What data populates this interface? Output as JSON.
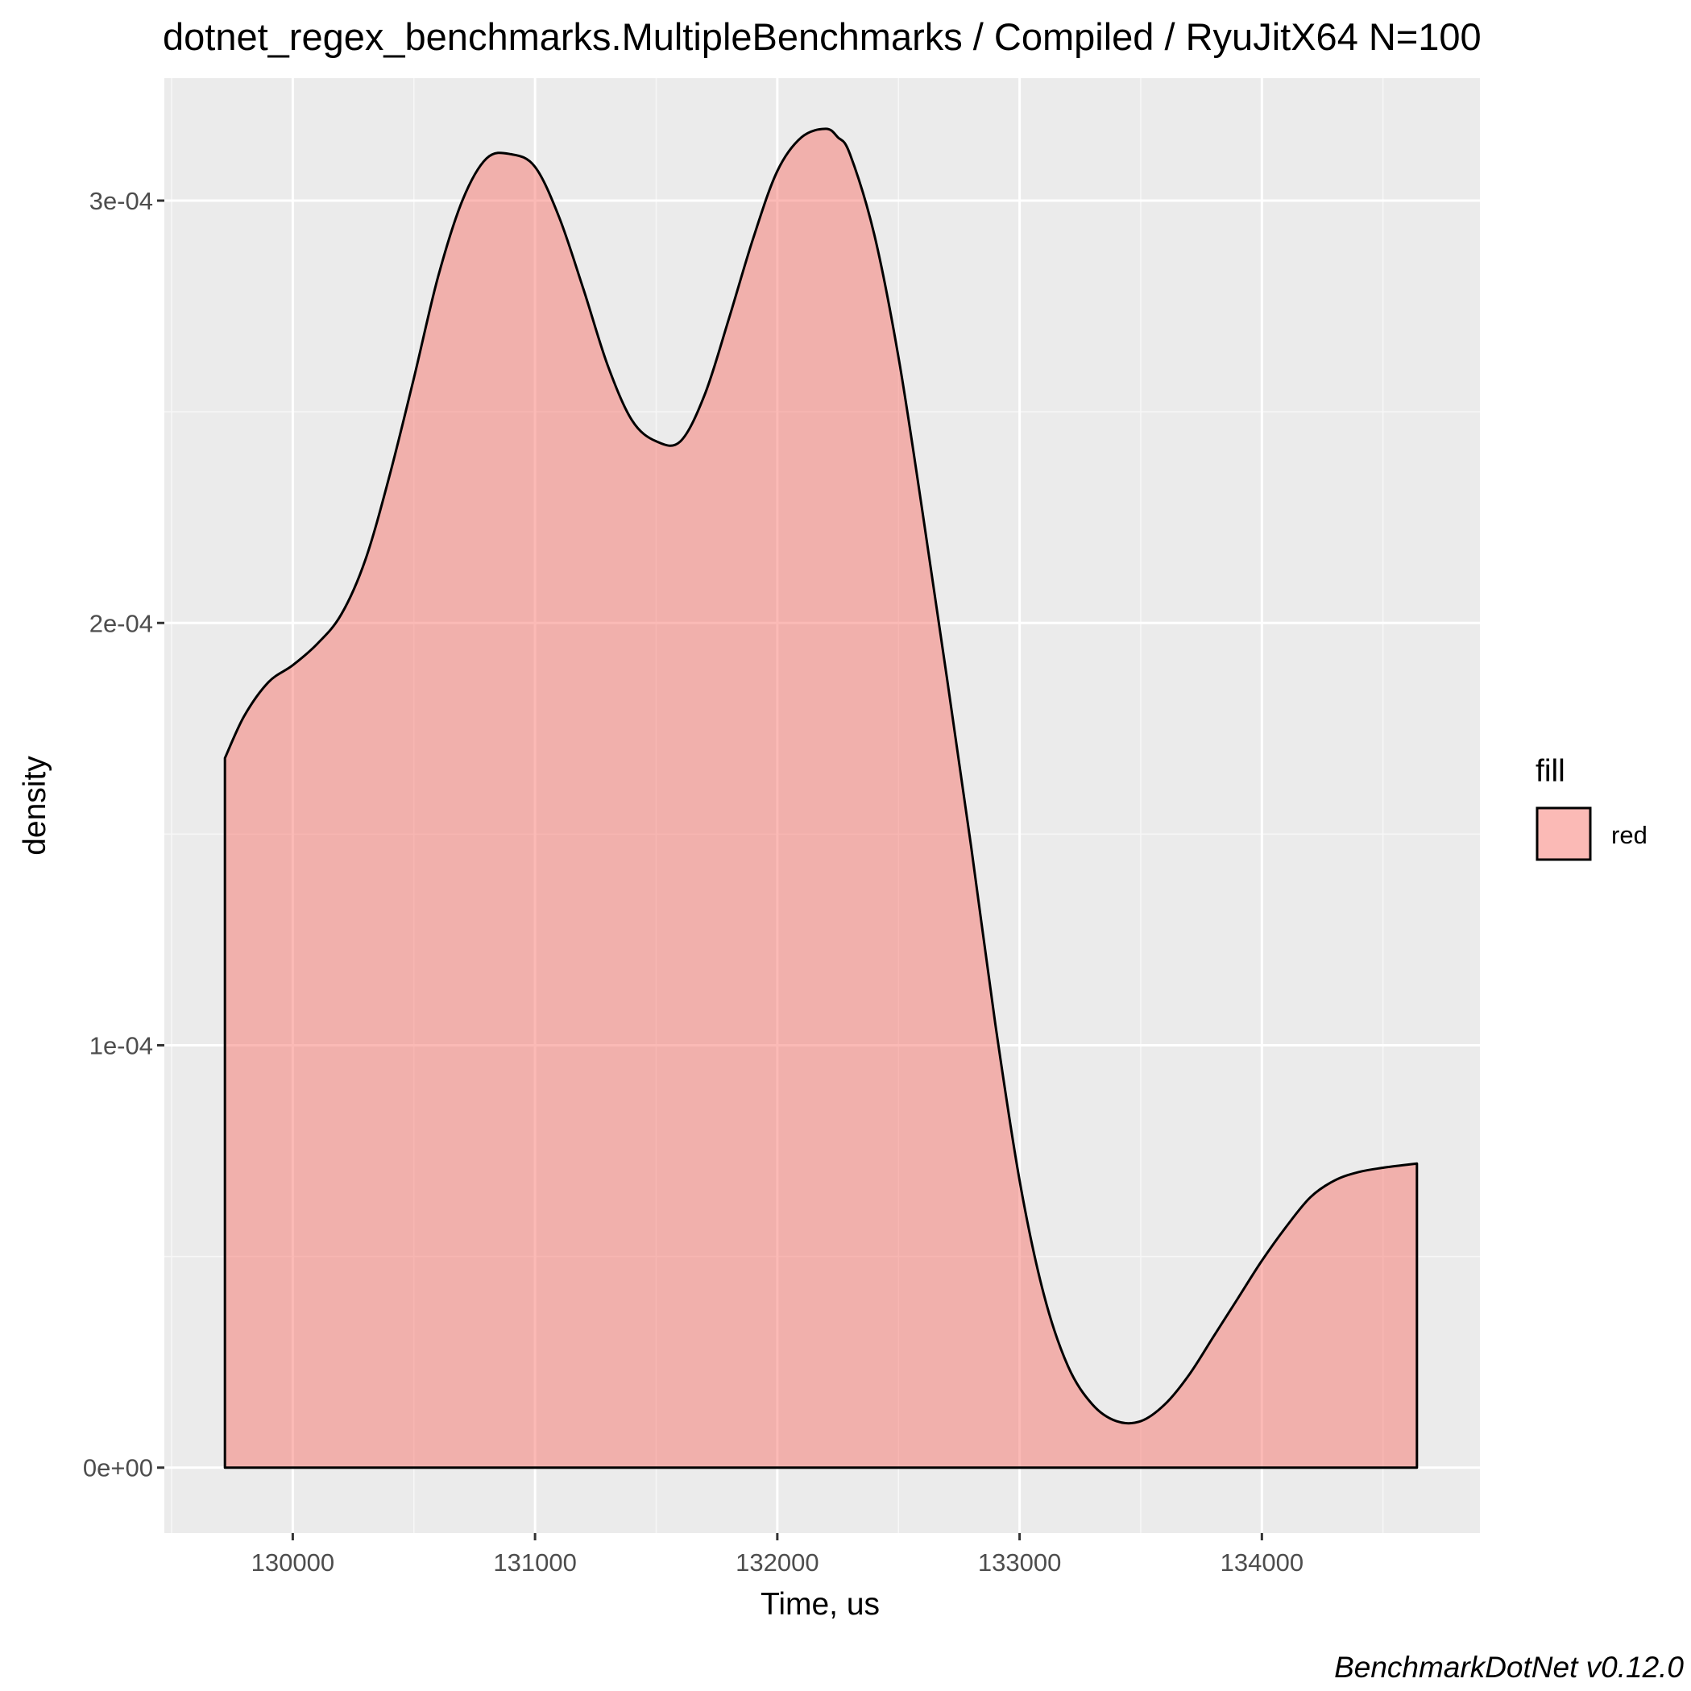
{
  "chart_data": {
    "type": "area",
    "title": "dotnet_regex_benchmarks.MultipleBenchmarks / Compiled / RyuJitX64 N=100",
    "xlabel": "Time, us",
    "ylabel": "density",
    "caption": "BenchmarkDotNet v0.12.0",
    "xlim": [
      129470,
      134900
    ],
    "ylim": [
      -1.55e-05,
      0.000329
    ],
    "x_ticks": [
      130000,
      131000,
      132000,
      133000,
      134000
    ],
    "x_tick_labels": [
      "130000",
      "131000",
      "132000",
      "133000",
      "134000"
    ],
    "y_ticks": [
      0,
      0.0001,
      0.0002,
      0.0003
    ],
    "y_tick_labels": [
      "0e+00",
      "1e-04",
      "2e-04",
      "3e-04"
    ],
    "grid": true,
    "legend": {
      "title": "fill",
      "position": "right",
      "entries": [
        "red"
      ]
    },
    "series": [
      {
        "name": "red",
        "color": "#F8766D",
        "x": [
          129720,
          129800,
          129900,
          130000,
          130100,
          130200,
          130300,
          130400,
          130500,
          130600,
          130700,
          130800,
          130900,
          131000,
          131100,
          131200,
          131300,
          131400,
          131500,
          131600,
          131700,
          131800,
          131900,
          132000,
          132100,
          132200,
          132250,
          132300,
          132400,
          132500,
          132600,
          132700,
          132800,
          132900,
          133000,
          133100,
          133200,
          133300,
          133400,
          133500,
          133600,
          133700,
          133800,
          133900,
          134000,
          134100,
          134200,
          134300,
          134400,
          134500,
          134640
        ],
        "y": [
          0.000168,
          0.000178,
          0.000186,
          0.00019,
          0.000195,
          0.000202,
          0.000215,
          0.000235,
          0.000258,
          0.000282,
          0.0003,
          0.00031,
          0.000311,
          0.000308,
          0.000296,
          0.000279,
          0.000261,
          0.000248,
          0.000243,
          0.000243,
          0.000254,
          0.000272,
          0.000291,
          0.000307,
          0.000315,
          0.000317,
          0.000315,
          0.000311,
          0.000292,
          0.000263,
          0.000226,
          0.000187,
          0.000147,
          0.000105,
          6.8e-05,
          4.1e-05,
          2.4e-05,
          1.5e-05,
          1.1e-05,
          1.1e-05,
          1.5e-05,
          2.2e-05,
          3.1e-05,
          4e-05,
          4.9e-05,
          5.7e-05,
          6.4e-05,
          6.8e-05,
          7e-05,
          7.1e-05,
          7.2e-05
        ]
      }
    ]
  }
}
